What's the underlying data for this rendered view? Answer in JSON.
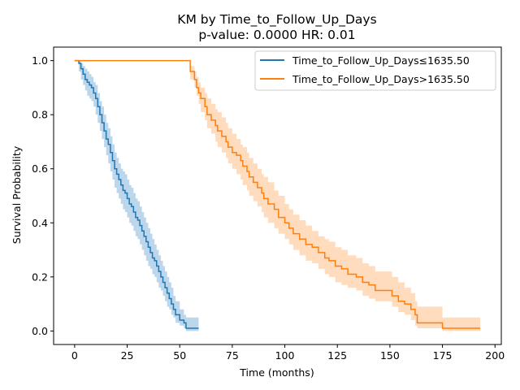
{
  "chart_data": {
    "type": "line",
    "title": "KM by Time_to_Follow_Up_Days",
    "subtitle": "p-value: 0.0000  HR: 0.01",
    "xlabel": "Time (months)",
    "ylabel": "Survival Probability",
    "xlim": [
      -10,
      203
    ],
    "ylim": [
      -0.05,
      1.05
    ],
    "xticks": [
      0,
      25,
      50,
      75,
      100,
      125,
      150,
      175,
      200
    ],
    "yticks": [
      0.0,
      0.2,
      0.4,
      0.6,
      0.8,
      1.0
    ],
    "xtick_labels": [
      "0",
      "25",
      "50",
      "75",
      "100",
      "125",
      "150",
      "175",
      "200"
    ],
    "ytick_labels": [
      "0.0",
      "0.2",
      "0.4",
      "0.6",
      "0.8",
      "1.0"
    ],
    "grid": false,
    "legend_position": "top-right",
    "series": [
      {
        "name": "Time_to_Follow_Up_Days≤1635.50",
        "color": "#1f77b4",
        "band_color": "#a6c8e4",
        "steps": [
          [
            0,
            1.0
          ],
          [
            2,
            0.99
          ],
          [
            3,
            0.97
          ],
          [
            4,
            0.95
          ],
          [
            5,
            0.93
          ],
          [
            6,
            0.92
          ],
          [
            7,
            0.91
          ],
          [
            8,
            0.9
          ],
          [
            9,
            0.88
          ],
          [
            10,
            0.86
          ],
          [
            11,
            0.83
          ],
          [
            12,
            0.8
          ],
          [
            13,
            0.77
          ],
          [
            14,
            0.74
          ],
          [
            15,
            0.71
          ],
          [
            16,
            0.69
          ],
          [
            17,
            0.66
          ],
          [
            18,
            0.63
          ],
          [
            19,
            0.6
          ],
          [
            20,
            0.58
          ],
          [
            21,
            0.56
          ],
          [
            22,
            0.54
          ],
          [
            23,
            0.52
          ],
          [
            24,
            0.51
          ],
          [
            25,
            0.49
          ],
          [
            26,
            0.47
          ],
          [
            27,
            0.46
          ],
          [
            28,
            0.44
          ],
          [
            29,
            0.42
          ],
          [
            30,
            0.41
          ],
          [
            31,
            0.39
          ],
          [
            32,
            0.37
          ],
          [
            33,
            0.35
          ],
          [
            34,
            0.33
          ],
          [
            35,
            0.31
          ],
          [
            36,
            0.29
          ],
          [
            37,
            0.27
          ],
          [
            38,
            0.26
          ],
          [
            39,
            0.24
          ],
          [
            40,
            0.22
          ],
          [
            41,
            0.2
          ],
          [
            42,
            0.18
          ],
          [
            43,
            0.16
          ],
          [
            44,
            0.14
          ],
          [
            45,
            0.12
          ],
          [
            46,
            0.1
          ],
          [
            47,
            0.08
          ],
          [
            48,
            0.06
          ],
          [
            50,
            0.04
          ],
          [
            52,
            0.03
          ],
          [
            53,
            0.01
          ],
          [
            59,
            0.01
          ]
        ],
        "lower": [
          [
            0,
            1.0
          ],
          [
            2,
            0.96
          ],
          [
            3,
            0.93
          ],
          [
            4,
            0.91
          ],
          [
            5,
            0.89
          ],
          [
            6,
            0.87
          ],
          [
            7,
            0.86
          ],
          [
            8,
            0.85
          ],
          [
            9,
            0.83
          ],
          [
            10,
            0.8
          ],
          [
            11,
            0.77
          ],
          [
            12,
            0.74
          ],
          [
            13,
            0.71
          ],
          [
            14,
            0.68
          ],
          [
            15,
            0.65
          ],
          [
            16,
            0.62
          ],
          [
            17,
            0.59
          ],
          [
            18,
            0.56
          ],
          [
            19,
            0.53
          ],
          [
            20,
            0.51
          ],
          [
            21,
            0.49
          ],
          [
            22,
            0.47
          ],
          [
            23,
            0.45
          ],
          [
            24,
            0.44
          ],
          [
            25,
            0.42
          ],
          [
            26,
            0.4
          ],
          [
            27,
            0.39
          ],
          [
            28,
            0.37
          ],
          [
            29,
            0.35
          ],
          [
            30,
            0.34
          ],
          [
            31,
            0.32
          ],
          [
            32,
            0.3
          ],
          [
            33,
            0.28
          ],
          [
            34,
            0.26
          ],
          [
            35,
            0.24
          ],
          [
            36,
            0.23
          ],
          [
            37,
            0.21
          ],
          [
            38,
            0.2
          ],
          [
            39,
            0.18
          ],
          [
            40,
            0.16
          ],
          [
            41,
            0.15
          ],
          [
            42,
            0.13
          ],
          [
            43,
            0.11
          ],
          [
            44,
            0.09
          ],
          [
            45,
            0.08
          ],
          [
            46,
            0.06
          ],
          [
            47,
            0.05
          ],
          [
            48,
            0.03
          ],
          [
            50,
            0.02
          ],
          [
            52,
            0.01
          ],
          [
            53,
            0.0
          ],
          [
            59,
            0.0
          ]
        ],
        "upper": [
          [
            0,
            1.0
          ],
          [
            2,
            1.0
          ],
          [
            3,
            0.99
          ],
          [
            4,
            0.98
          ],
          [
            5,
            0.97
          ],
          [
            6,
            0.96
          ],
          [
            7,
            0.95
          ],
          [
            8,
            0.94
          ],
          [
            9,
            0.92
          ],
          [
            10,
            0.91
          ],
          [
            11,
            0.88
          ],
          [
            12,
            0.85
          ],
          [
            13,
            0.83
          ],
          [
            14,
            0.8
          ],
          [
            15,
            0.77
          ],
          [
            16,
            0.75
          ],
          [
            17,
            0.72
          ],
          [
            18,
            0.69
          ],
          [
            19,
            0.66
          ],
          [
            20,
            0.64
          ],
          [
            21,
            0.62
          ],
          [
            22,
            0.6
          ],
          [
            23,
            0.59
          ],
          [
            24,
            0.58
          ],
          [
            25,
            0.56
          ],
          [
            26,
            0.54
          ],
          [
            27,
            0.53
          ],
          [
            28,
            0.51
          ],
          [
            29,
            0.49
          ],
          [
            30,
            0.48
          ],
          [
            31,
            0.46
          ],
          [
            32,
            0.44
          ],
          [
            33,
            0.42
          ],
          [
            34,
            0.4
          ],
          [
            35,
            0.38
          ],
          [
            36,
            0.36
          ],
          [
            37,
            0.34
          ],
          [
            38,
            0.32
          ],
          [
            39,
            0.3
          ],
          [
            40,
            0.28
          ],
          [
            41,
            0.26
          ],
          [
            42,
            0.24
          ],
          [
            43,
            0.22
          ],
          [
            44,
            0.2
          ],
          [
            45,
            0.18
          ],
          [
            46,
            0.16
          ],
          [
            47,
            0.13
          ],
          [
            48,
            0.11
          ],
          [
            50,
            0.08
          ],
          [
            52,
            0.06
          ],
          [
            53,
            0.05
          ],
          [
            59,
            0.05
          ]
        ]
      },
      {
        "name": "Time_to_Follow_Up_Days>1635.50",
        "color": "#ff7f0e",
        "band_color": "#ffd0a8",
        "steps": [
          [
            0,
            1.0
          ],
          [
            55,
            0.96
          ],
          [
            57,
            0.93
          ],
          [
            58,
            0.9
          ],
          [
            59,
            0.88
          ],
          [
            60,
            0.86
          ],
          [
            62,
            0.83
          ],
          [
            63,
            0.8
          ],
          [
            65,
            0.78
          ],
          [
            67,
            0.76
          ],
          [
            68,
            0.74
          ],
          [
            70,
            0.72
          ],
          [
            72,
            0.7
          ],
          [
            73,
            0.68
          ],
          [
            75,
            0.66
          ],
          [
            77,
            0.65
          ],
          [
            79,
            0.63
          ],
          [
            80,
            0.61
          ],
          [
            82,
            0.59
          ],
          [
            83,
            0.57
          ],
          [
            85,
            0.55
          ],
          [
            87,
            0.53
          ],
          [
            89,
            0.51
          ],
          [
            90,
            0.49
          ],
          [
            92,
            0.47
          ],
          [
            95,
            0.45
          ],
          [
            97,
            0.42
          ],
          [
            100,
            0.4
          ],
          [
            102,
            0.38
          ],
          [
            104,
            0.36
          ],
          [
            107,
            0.34
          ],
          [
            110,
            0.32
          ],
          [
            113,
            0.31
          ],
          [
            116,
            0.29
          ],
          [
            119,
            0.27
          ],
          [
            121,
            0.26
          ],
          [
            124,
            0.24
          ],
          [
            127,
            0.23
          ],
          [
            130,
            0.21
          ],
          [
            134,
            0.2
          ],
          [
            137,
            0.18
          ],
          [
            140,
            0.17
          ],
          [
            143,
            0.15
          ],
          [
            151,
            0.13
          ],
          [
            154,
            0.11
          ],
          [
            157,
            0.1
          ],
          [
            160,
            0.08
          ],
          [
            162,
            0.06
          ],
          [
            163,
            0.03
          ],
          [
            175,
            0.01
          ],
          [
            193,
            0.01
          ]
        ],
        "lower": [
          [
            0,
            1.0
          ],
          [
            55,
            0.93
          ],
          [
            57,
            0.9
          ],
          [
            58,
            0.87
          ],
          [
            59,
            0.84
          ],
          [
            60,
            0.81
          ],
          [
            62,
            0.78
          ],
          [
            63,
            0.75
          ],
          [
            65,
            0.73
          ],
          [
            67,
            0.7
          ],
          [
            68,
            0.68
          ],
          [
            70,
            0.66
          ],
          [
            72,
            0.64
          ],
          [
            73,
            0.62
          ],
          [
            75,
            0.6
          ],
          [
            77,
            0.58
          ],
          [
            79,
            0.56
          ],
          [
            80,
            0.54
          ],
          [
            82,
            0.52
          ],
          [
            83,
            0.5
          ],
          [
            85,
            0.48
          ],
          [
            87,
            0.46
          ],
          [
            89,
            0.44
          ],
          [
            90,
            0.42
          ],
          [
            92,
            0.4
          ],
          [
            95,
            0.38
          ],
          [
            97,
            0.36
          ],
          [
            100,
            0.34
          ],
          [
            102,
            0.32
          ],
          [
            104,
            0.3
          ],
          [
            107,
            0.28
          ],
          [
            110,
            0.26
          ],
          [
            113,
            0.25
          ],
          [
            116,
            0.23
          ],
          [
            119,
            0.21
          ],
          [
            121,
            0.2
          ],
          [
            124,
            0.18
          ],
          [
            127,
            0.17
          ],
          [
            130,
            0.16
          ],
          [
            134,
            0.15
          ],
          [
            137,
            0.13
          ],
          [
            140,
            0.12
          ],
          [
            143,
            0.11
          ],
          [
            151,
            0.09
          ],
          [
            154,
            0.07
          ],
          [
            157,
            0.06
          ],
          [
            160,
            0.04
          ],
          [
            162,
            0.02
          ],
          [
            163,
            0.01
          ],
          [
            175,
            0.0
          ],
          [
            193,
            0.0
          ]
        ],
        "upper": [
          [
            0,
            1.0
          ],
          [
            55,
            0.98
          ],
          [
            57,
            0.96
          ],
          [
            58,
            0.94
          ],
          [
            59,
            0.92
          ],
          [
            60,
            0.9
          ],
          [
            62,
            0.88
          ],
          [
            63,
            0.86
          ],
          [
            65,
            0.84
          ],
          [
            67,
            0.82
          ],
          [
            68,
            0.81
          ],
          [
            70,
            0.79
          ],
          [
            72,
            0.77
          ],
          [
            73,
            0.75
          ],
          [
            75,
            0.73
          ],
          [
            77,
            0.71
          ],
          [
            79,
            0.69
          ],
          [
            80,
            0.68
          ],
          [
            82,
            0.66
          ],
          [
            83,
            0.64
          ],
          [
            85,
            0.62
          ],
          [
            87,
            0.6
          ],
          [
            89,
            0.58
          ],
          [
            90,
            0.57
          ],
          [
            92,
            0.55
          ],
          [
            95,
            0.52
          ],
          [
            97,
            0.5
          ],
          [
            100,
            0.47
          ],
          [
            102,
            0.45
          ],
          [
            104,
            0.43
          ],
          [
            107,
            0.41
          ],
          [
            110,
            0.39
          ],
          [
            113,
            0.37
          ],
          [
            116,
            0.35
          ],
          [
            119,
            0.34
          ],
          [
            121,
            0.33
          ],
          [
            124,
            0.31
          ],
          [
            127,
            0.3
          ],
          [
            130,
            0.28
          ],
          [
            134,
            0.27
          ],
          [
            137,
            0.25
          ],
          [
            140,
            0.24
          ],
          [
            143,
            0.22
          ],
          [
            151,
            0.2
          ],
          [
            154,
            0.18
          ],
          [
            157,
            0.16
          ],
          [
            160,
            0.14
          ],
          [
            162,
            0.11
          ],
          [
            163,
            0.09
          ],
          [
            175,
            0.05
          ],
          [
            193,
            0.05
          ]
        ]
      }
    ]
  }
}
